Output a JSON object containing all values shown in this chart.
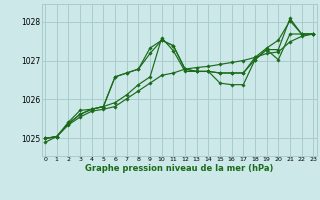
{
  "background_color": "#cce8e8",
  "grid_color": "#aacccc",
  "line_color": "#1a6b1a",
  "marker_color": "#1a6b1a",
  "x_ticks": [
    0,
    1,
    2,
    3,
    4,
    5,
    6,
    7,
    8,
    9,
    10,
    11,
    12,
    13,
    14,
    15,
    16,
    17,
    18,
    19,
    20,
    21,
    22,
    23
  ],
  "y_ticks": [
    1025,
    1026,
    1027,
    1028
  ],
  "ylim": [
    1024.55,
    1028.45
  ],
  "xlim": [
    -0.3,
    23.3
  ],
  "xlabel": "Graphe pression niveau de la mer (hPa)",
  "series": [
    [
      1024.9,
      1025.05,
      1025.35,
      1025.55,
      1025.7,
      1025.75,
      1025.82,
      1026.02,
      1026.22,
      1026.42,
      1026.62,
      1026.68,
      1026.78,
      1026.82,
      1026.85,
      1026.9,
      1026.95,
      1027.0,
      1027.08,
      1027.18,
      1027.22,
      1027.48,
      1027.62,
      1027.68
    ],
    [
      1025.0,
      1025.05,
      1025.38,
      1025.62,
      1025.75,
      1025.82,
      1025.92,
      1026.12,
      1026.38,
      1026.58,
      1027.58,
      1027.25,
      1026.72,
      1026.72,
      1026.72,
      1026.42,
      1026.38,
      1026.38,
      1027.02,
      1027.28,
      1027.28,
      1028.08,
      1027.68,
      1027.68
    ],
    [
      1025.0,
      1025.05,
      1025.38,
      1025.62,
      1025.75,
      1025.82,
      1026.58,
      1026.68,
      1026.78,
      1027.18,
      1027.52,
      1027.38,
      1026.78,
      1026.72,
      1026.72,
      1026.68,
      1026.68,
      1026.68,
      1027.02,
      1027.28,
      1027.02,
      1027.68,
      1027.68,
      1027.68
    ],
    [
      1025.0,
      1025.05,
      1025.42,
      1025.72,
      1025.75,
      1025.82,
      1026.58,
      1026.68,
      1026.78,
      1027.32,
      1027.52,
      1027.38,
      1026.78,
      1026.72,
      1026.72,
      1026.68,
      1026.68,
      1026.68,
      1027.08,
      1027.32,
      1027.52,
      1028.02,
      1027.68,
      1027.68
    ]
  ]
}
